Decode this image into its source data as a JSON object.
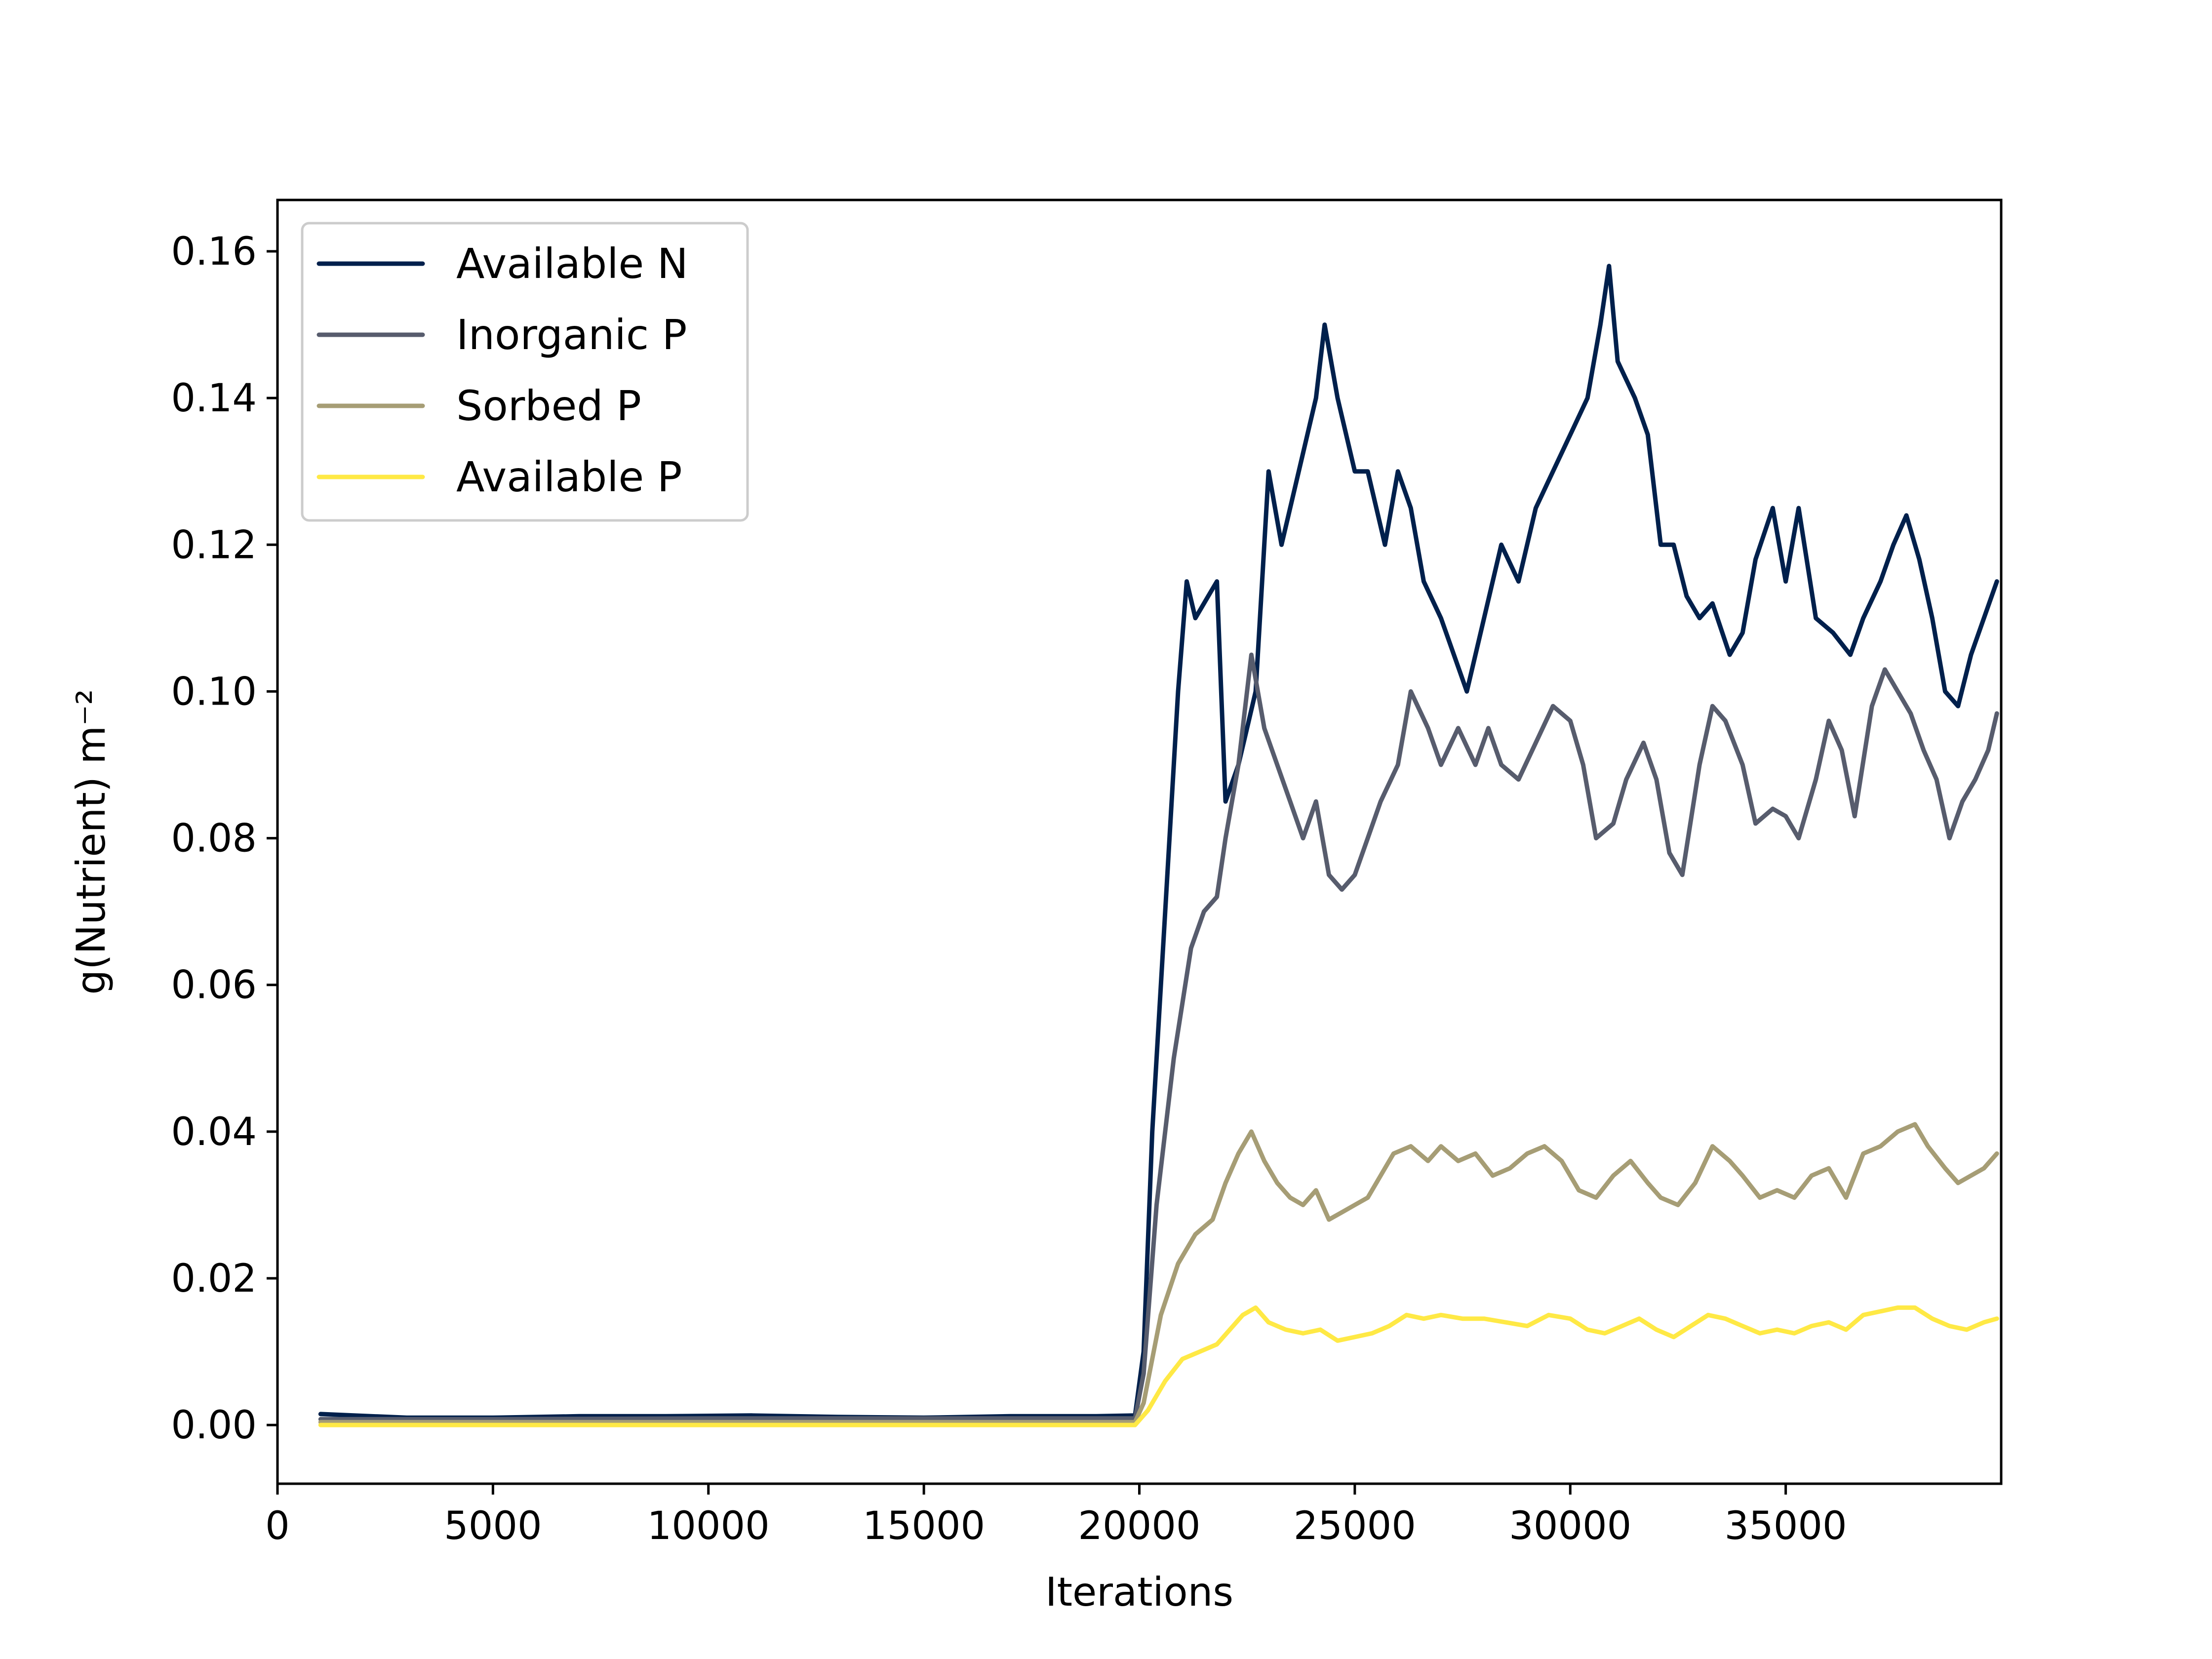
{
  "chart_data": {
    "type": "line",
    "title": "",
    "xlabel": "Iterations",
    "ylabel": "g(Nutrient) m⁻²",
    "xlim": [
      0,
      40000
    ],
    "ylim": [
      -0.008,
      0.167
    ],
    "x_ticks": [
      0,
      5000,
      10000,
      15000,
      20000,
      25000,
      30000,
      35000
    ],
    "x_tick_labels": [
      "0",
      "5000",
      "10000",
      "15000",
      "20000",
      "25000",
      "30000",
      "35000"
    ],
    "y_ticks": [
      0.0,
      0.02,
      0.04,
      0.06,
      0.08,
      0.1,
      0.12,
      0.14,
      0.16
    ],
    "y_tick_labels": [
      "0.00",
      "0.02",
      "0.04",
      "0.06",
      "0.08",
      "0.10",
      "0.12",
      "0.14",
      "0.16"
    ],
    "grid": false,
    "legend_position": "top-left",
    "series": [
      {
        "name": "Available N",
        "color": "#00204c",
        "points": [
          [
            1000,
            0.0015
          ],
          [
            3000,
            0.001
          ],
          [
            5000,
            0.001
          ],
          [
            7000,
            0.0012
          ],
          [
            9000,
            0.0012
          ],
          [
            11000,
            0.0013
          ],
          [
            13000,
            0.0011
          ],
          [
            15000,
            0.001
          ],
          [
            17000,
            0.0012
          ],
          [
            19000,
            0.0012
          ],
          [
            19900,
            0.0013
          ],
          [
            20100,
            0.01
          ],
          [
            20300,
            0.04
          ],
          [
            20600,
            0.07
          ],
          [
            20900,
            0.1
          ],
          [
            21100,
            0.115
          ],
          [
            21300,
            0.11
          ],
          [
            21600,
            0.113
          ],
          [
            21800,
            0.115
          ],
          [
            21900,
            0.1
          ],
          [
            22000,
            0.085
          ],
          [
            22300,
            0.09
          ],
          [
            22500,
            0.095
          ],
          [
            22700,
            0.1
          ],
          [
            23000,
            0.13
          ],
          [
            23300,
            0.12
          ],
          [
            23700,
            0.13
          ],
          [
            24100,
            0.14
          ],
          [
            24300,
            0.15
          ],
          [
            24600,
            0.14
          ],
          [
            25000,
            0.13
          ],
          [
            25300,
            0.13
          ],
          [
            25700,
            0.12
          ],
          [
            26000,
            0.13
          ],
          [
            26300,
            0.125
          ],
          [
            26600,
            0.115
          ],
          [
            27000,
            0.11
          ],
          [
            27300,
            0.105
          ],
          [
            27600,
            0.1
          ],
          [
            28000,
            0.11
          ],
          [
            28400,
            0.12
          ],
          [
            28800,
            0.115
          ],
          [
            29200,
            0.125
          ],
          [
            29600,
            0.13
          ],
          [
            30000,
            0.135
          ],
          [
            30400,
            0.14
          ],
          [
            30700,
            0.15
          ],
          [
            30900,
            0.158
          ],
          [
            31100,
            0.145
          ],
          [
            31500,
            0.14
          ],
          [
            31800,
            0.135
          ],
          [
            32100,
            0.12
          ],
          [
            32400,
            0.12
          ],
          [
            32700,
            0.113
          ],
          [
            33000,
            0.11
          ],
          [
            33300,
            0.112
          ],
          [
            33700,
            0.105
          ],
          [
            34000,
            0.108
          ],
          [
            34300,
            0.118
          ],
          [
            34700,
            0.125
          ],
          [
            35000,
            0.115
          ],
          [
            35300,
            0.125
          ],
          [
            35700,
            0.11
          ],
          [
            36100,
            0.108
          ],
          [
            36500,
            0.105
          ],
          [
            36800,
            0.11
          ],
          [
            37200,
            0.115
          ],
          [
            37500,
            0.12
          ],
          [
            37800,
            0.124
          ],
          [
            38100,
            0.118
          ],
          [
            38400,
            0.11
          ],
          [
            38700,
            0.1
          ],
          [
            39000,
            0.098
          ],
          [
            39300,
            0.105
          ],
          [
            39600,
            0.11
          ],
          [
            39900,
            0.115
          ]
        ]
      },
      {
        "name": "Inorganic P",
        "color": "#575c6d",
        "points": [
          [
            1000,
            0.0008
          ],
          [
            5000,
            0.0008
          ],
          [
            10000,
            0.0009
          ],
          [
            15000,
            0.0009
          ],
          [
            19900,
            0.0009
          ],
          [
            20100,
            0.007
          ],
          [
            20400,
            0.03
          ],
          [
            20800,
            0.05
          ],
          [
            21200,
            0.065
          ],
          [
            21500,
            0.07
          ],
          [
            21800,
            0.072
          ],
          [
            22000,
            0.08
          ],
          [
            22300,
            0.09
          ],
          [
            22600,
            0.105
          ],
          [
            22900,
            0.095
          ],
          [
            23200,
            0.09
          ],
          [
            23500,
            0.085
          ],
          [
            23800,
            0.08
          ],
          [
            24100,
            0.085
          ],
          [
            24400,
            0.075
          ],
          [
            24700,
            0.073
          ],
          [
            25000,
            0.075
          ],
          [
            25300,
            0.08
          ],
          [
            25600,
            0.085
          ],
          [
            26000,
            0.09
          ],
          [
            26300,
            0.1
          ],
          [
            26700,
            0.095
          ],
          [
            27000,
            0.09
          ],
          [
            27400,
            0.095
          ],
          [
            27800,
            0.09
          ],
          [
            28100,
            0.095
          ],
          [
            28400,
            0.09
          ],
          [
            28800,
            0.088
          ],
          [
            29200,
            0.093
          ],
          [
            29600,
            0.098
          ],
          [
            30000,
            0.096
          ],
          [
            30300,
            0.09
          ],
          [
            30600,
            0.08
          ],
          [
            31000,
            0.082
          ],
          [
            31300,
            0.088
          ],
          [
            31700,
            0.093
          ],
          [
            32000,
            0.088
          ],
          [
            32300,
            0.078
          ],
          [
            32600,
            0.075
          ],
          [
            33000,
            0.09
          ],
          [
            33300,
            0.098
          ],
          [
            33600,
            0.096
          ],
          [
            34000,
            0.09
          ],
          [
            34300,
            0.082
          ],
          [
            34700,
            0.084
          ],
          [
            35000,
            0.083
          ],
          [
            35300,
            0.08
          ],
          [
            35700,
            0.088
          ],
          [
            36000,
            0.096
          ],
          [
            36300,
            0.092
          ],
          [
            36600,
            0.083
          ],
          [
            37000,
            0.098
          ],
          [
            37300,
            0.103
          ],
          [
            37600,
            0.1
          ],
          [
            37900,
            0.097
          ],
          [
            38200,
            0.092
          ],
          [
            38500,
            0.088
          ],
          [
            38800,
            0.08
          ],
          [
            39100,
            0.085
          ],
          [
            39400,
            0.088
          ],
          [
            39700,
            0.092
          ],
          [
            39900,
            0.097
          ]
        ]
      },
      {
        "name": "Sorbed P",
        "color": "#a69d75",
        "points": [
          [
            1000,
            0.0004
          ],
          [
            5000,
            0.0004
          ],
          [
            10000,
            0.0004
          ],
          [
            15000,
            0.0004
          ],
          [
            19900,
            0.0004
          ],
          [
            20100,
            0.003
          ],
          [
            20500,
            0.015
          ],
          [
            20900,
            0.022
          ],
          [
            21300,
            0.026
          ],
          [
            21700,
            0.028
          ],
          [
            22000,
            0.033
          ],
          [
            22300,
            0.037
          ],
          [
            22600,
            0.04
          ],
          [
            22900,
            0.036
          ],
          [
            23200,
            0.033
          ],
          [
            23500,
            0.031
          ],
          [
            23800,
            0.03
          ],
          [
            24100,
            0.032
          ],
          [
            24400,
            0.028
          ],
          [
            24700,
            0.029
          ],
          [
            25000,
            0.03
          ],
          [
            25300,
            0.031
          ],
          [
            25600,
            0.034
          ],
          [
            25900,
            0.037
          ],
          [
            26300,
            0.038
          ],
          [
            26700,
            0.036
          ],
          [
            27000,
            0.038
          ],
          [
            27400,
            0.036
          ],
          [
            27800,
            0.037
          ],
          [
            28200,
            0.034
          ],
          [
            28600,
            0.035
          ],
          [
            29000,
            0.037
          ],
          [
            29400,
            0.038
          ],
          [
            29800,
            0.036
          ],
          [
            30200,
            0.032
          ],
          [
            30600,
            0.031
          ],
          [
            31000,
            0.034
          ],
          [
            31400,
            0.036
          ],
          [
            31800,
            0.033
          ],
          [
            32100,
            0.031
          ],
          [
            32500,
            0.03
          ],
          [
            32900,
            0.033
          ],
          [
            33300,
            0.038
          ],
          [
            33700,
            0.036
          ],
          [
            34000,
            0.034
          ],
          [
            34400,
            0.031
          ],
          [
            34800,
            0.032
          ],
          [
            35200,
            0.031
          ],
          [
            35600,
            0.034
          ],
          [
            36000,
            0.035
          ],
          [
            36400,
            0.031
          ],
          [
            36800,
            0.037
          ],
          [
            37200,
            0.038
          ],
          [
            37600,
            0.04
          ],
          [
            38000,
            0.041
          ],
          [
            38300,
            0.038
          ],
          [
            38700,
            0.035
          ],
          [
            39000,
            0.033
          ],
          [
            39300,
            0.034
          ],
          [
            39600,
            0.035
          ],
          [
            39900,
            0.037
          ]
        ]
      },
      {
        "name": "Available P",
        "color": "#ffe945",
        "points": [
          [
            1000,
            0.0
          ],
          [
            5000,
            0.0
          ],
          [
            10000,
            0.0
          ],
          [
            15000,
            0.0
          ],
          [
            19900,
            0.0
          ],
          [
            20200,
            0.002
          ],
          [
            20600,
            0.006
          ],
          [
            21000,
            0.009
          ],
          [
            21400,
            0.01
          ],
          [
            21800,
            0.011
          ],
          [
            22100,
            0.013
          ],
          [
            22400,
            0.015
          ],
          [
            22700,
            0.016
          ],
          [
            23000,
            0.014
          ],
          [
            23400,
            0.013
          ],
          [
            23800,
            0.0125
          ],
          [
            24200,
            0.013
          ],
          [
            24600,
            0.0115
          ],
          [
            25000,
            0.012
          ],
          [
            25400,
            0.0125
          ],
          [
            25800,
            0.0135
          ],
          [
            26200,
            0.015
          ],
          [
            26600,
            0.0145
          ],
          [
            27000,
            0.015
          ],
          [
            27500,
            0.0145
          ],
          [
            28000,
            0.0145
          ],
          [
            28500,
            0.014
          ],
          [
            29000,
            0.0135
          ],
          [
            29500,
            0.015
          ],
          [
            30000,
            0.0145
          ],
          [
            30400,
            0.013
          ],
          [
            30800,
            0.0125
          ],
          [
            31200,
            0.0135
          ],
          [
            31600,
            0.0145
          ],
          [
            32000,
            0.013
          ],
          [
            32400,
            0.012
          ],
          [
            32800,
            0.0135
          ],
          [
            33200,
            0.015
          ],
          [
            33600,
            0.0145
          ],
          [
            34000,
            0.0135
          ],
          [
            34400,
            0.0125
          ],
          [
            34800,
            0.013
          ],
          [
            35200,
            0.0125
          ],
          [
            35600,
            0.0135
          ],
          [
            36000,
            0.014
          ],
          [
            36400,
            0.013
          ],
          [
            36800,
            0.015
          ],
          [
            37200,
            0.0155
          ],
          [
            37600,
            0.016
          ],
          [
            38000,
            0.016
          ],
          [
            38400,
            0.0145
          ],
          [
            38800,
            0.0135
          ],
          [
            39200,
            0.013
          ],
          [
            39600,
            0.014
          ],
          [
            39900,
            0.0145
          ]
        ]
      }
    ]
  }
}
